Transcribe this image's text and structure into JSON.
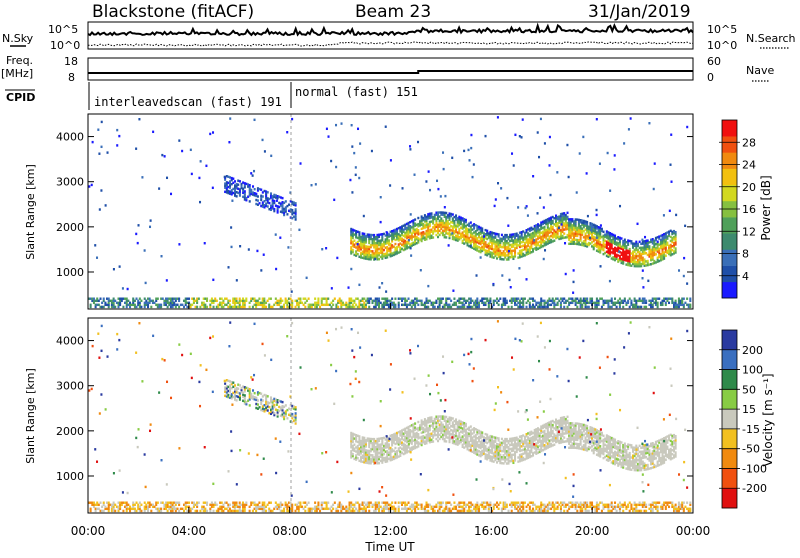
{
  "header": {
    "station": "Blackstone (fitACF)",
    "beam": "Beam 23",
    "date": "31/Jan/2019"
  },
  "top_panels": {
    "nsky_label": "N.Sky",
    "nsearch_label": "N.Search",
    "left_ticks": [
      "10^5",
      "10^0"
    ],
    "right_ticks": [
      "10^5",
      "10^0"
    ],
    "freq_label_1": "Freq.",
    "freq_label_2": "[MHz]",
    "freq_ticks": [
      "18",
      "8"
    ],
    "nave_label": "Nave",
    "nave_ticks": [
      "60",
      "0"
    ],
    "cpid_label": "CPID",
    "cpid_1": "interleavedscan (fast) 191",
    "cpid_2": "normal (fast) 151"
  },
  "chart_data": [
    {
      "type": "heatmap",
      "panel": "power",
      "ylabel": "Slant Range [km]",
      "y_ticks": [
        "4000",
        "3000",
        "2000",
        "1000"
      ],
      "ylim": [
        180,
        4500
      ],
      "xlim": [
        0,
        24
      ],
      "colorbar_label": "Power [dB]",
      "colorbar_ticks": [
        "28",
        "24",
        "20",
        "16",
        "12",
        "8",
        "4"
      ],
      "colorscale": [
        "#1a1aff",
        "#1f4fa8",
        "#3a6fb8",
        "#3d8a6e",
        "#4fa05a",
        "#86c040",
        "#d2d820",
        "#f2c010",
        "#f08a10",
        "#f05010",
        "#f01010"
      ],
      "features": [
        {
          "name": "near-range scatter",
          "x_range": [
            0,
            24
          ],
          "range_km": [
            180,
            400
          ],
          "peak_hours": [
            4,
            11
          ]
        },
        {
          "name": "patch",
          "x_range": [
            5.4,
            8.2
          ],
          "range_km": [
            2300,
            3100
          ]
        },
        {
          "name": "band",
          "x_range": [
            10.4,
            23.3
          ],
          "range_km": [
            1200,
            2300
          ]
        }
      ]
    },
    {
      "type": "heatmap",
      "panel": "velocity",
      "ylabel": "Slant Range [km]",
      "y_ticks": [
        "4000",
        "3000",
        "2000",
        "1000"
      ],
      "ylim": [
        180,
        4500
      ],
      "xlim": [
        0,
        24
      ],
      "colorbar_label": "Velocity [m s⁻¹]",
      "colorbar_ticks": [
        "200",
        "100",
        "50",
        "15",
        "-15",
        "-50",
        "-100",
        "-200"
      ],
      "colorscale": [
        "#2a3aa0",
        "#3a6fc0",
        "#2f8a4a",
        "#88cc44",
        "#c9c9bd",
        "#f2c020",
        "#f08a10",
        "#f05010",
        "#e01010"
      ]
    }
  ],
  "x_axis": {
    "ticks": [
      "00:00",
      "04:00",
      "08:00",
      "12:00",
      "16:00",
      "20:00",
      "00:00"
    ],
    "label": "Time UT"
  }
}
